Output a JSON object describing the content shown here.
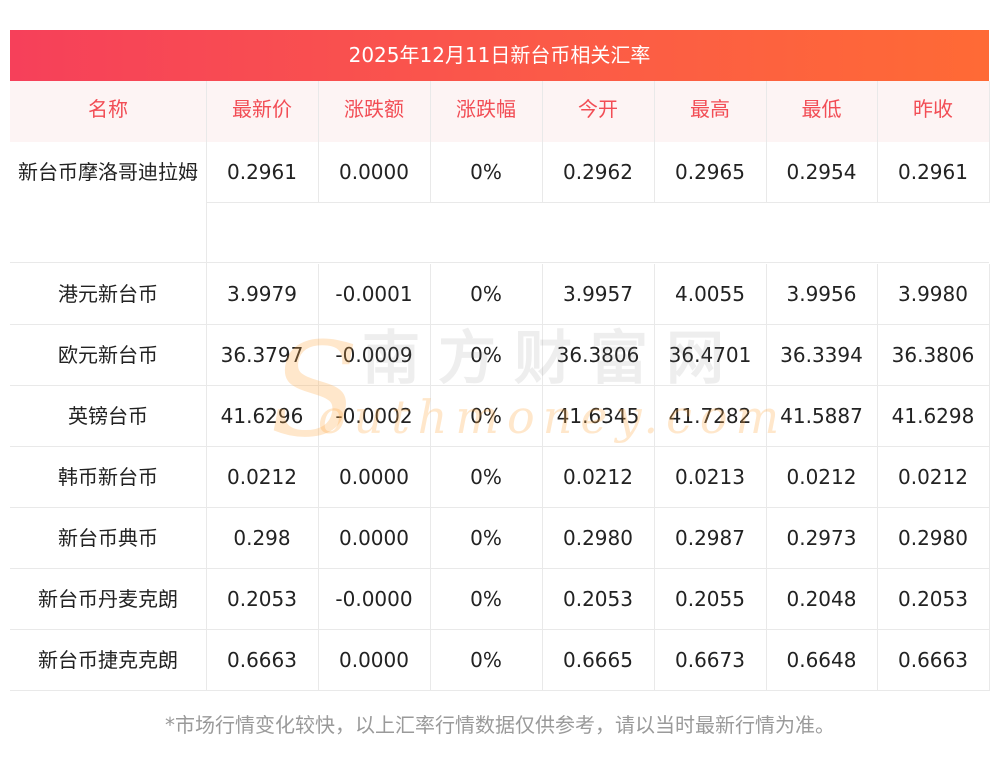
{
  "title": "2025年12月11日新台币相关汇率",
  "columns": [
    "名称",
    "最新价",
    "涨跌额",
    "涨跌幅",
    "今开",
    "最高",
    "最低",
    "昨收"
  ],
  "rows": [
    [
      "新台币摩洛哥迪拉姆",
      "0.2961",
      "0.0000",
      "0%",
      "0.2962",
      "0.2965",
      "0.2954",
      "0.2961"
    ],
    [
      "港元新台币",
      "3.9979",
      "-0.0001",
      "0%",
      "3.9957",
      "4.0055",
      "3.9956",
      "3.9980"
    ],
    [
      "欧元新台币",
      "36.3797",
      "-0.0009",
      "0%",
      "36.3806",
      "36.4701",
      "36.3394",
      "36.3806"
    ],
    [
      "英镑台币",
      "41.6296",
      "-0.0002",
      "0%",
      "41.6345",
      "41.7282",
      "41.5887",
      "41.6298"
    ],
    [
      "韩币新台币",
      "0.0212",
      "0.0000",
      "0%",
      "0.0212",
      "0.0213",
      "0.0212",
      "0.0212"
    ],
    [
      "新台币典币",
      "0.298",
      "0.0000",
      "0%",
      "0.2980",
      "0.2987",
      "0.2973",
      "0.2980"
    ],
    [
      "新台币丹麦克朗",
      "0.2053",
      "-0.0000",
      "0%",
      "0.2053",
      "0.2055",
      "0.2048",
      "0.2053"
    ],
    [
      "新台币捷克克朗",
      "0.6663",
      "0.0000",
      "0%",
      "0.6665",
      "0.6673",
      "0.6648",
      "0.6663"
    ]
  ],
  "watermark": {
    "initial": "S",
    "cn": "南方财富网",
    "en": "outhmoney.com"
  },
  "footer": "*市场行情变化较快，以上汇率行情数据仅供参考，请以当时最新行情为准。",
  "colors": {
    "header_text": "#f24d55",
    "title_gradient_start": "#f6405a",
    "title_gradient_end": "#ff6a35"
  }
}
